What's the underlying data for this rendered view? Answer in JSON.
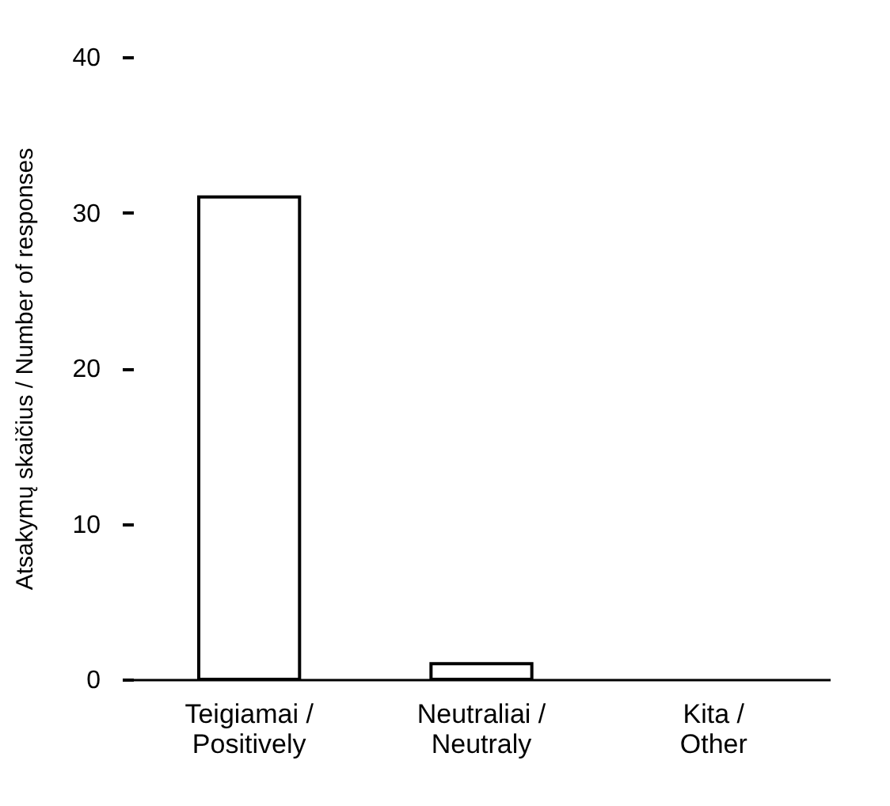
{
  "chart_data": {
    "type": "bar",
    "ylabel": "Atsakymų skaičius / Number of responses",
    "categories": [
      "Teigiamai / Positively",
      "Neutraliai / Neutraly",
      "Kita / Other"
    ],
    "values": [
      31,
      1,
      0
    ],
    "color": "#ffffff",
    "ylim": [
      0,
      40
    ],
    "yticks": [
      0,
      10,
      20,
      30,
      40
    ],
    "grid": false
  }
}
